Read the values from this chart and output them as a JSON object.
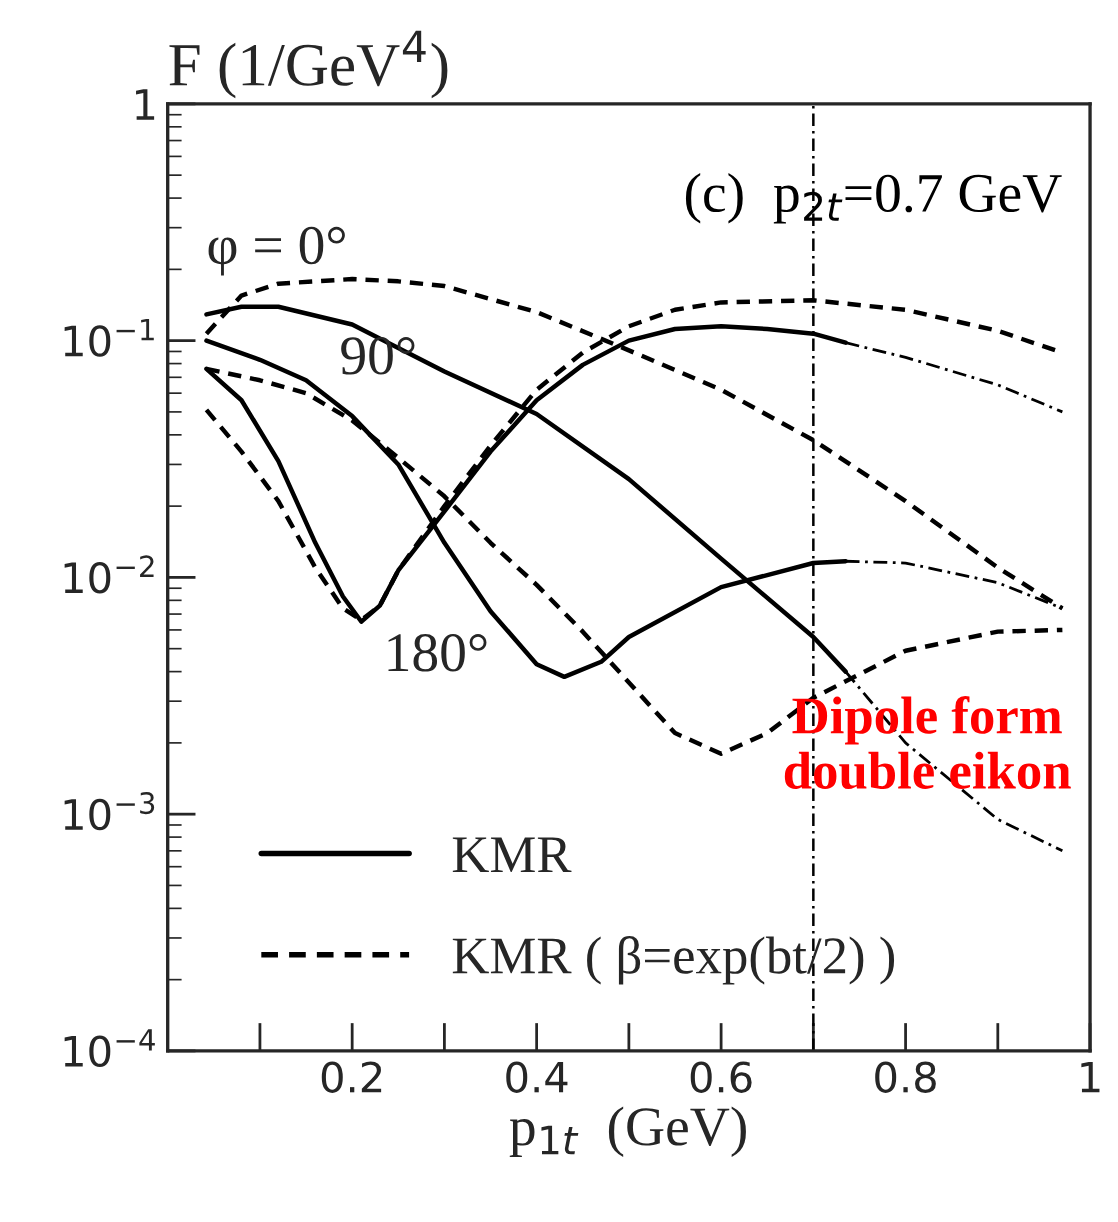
{
  "chart_data": {
    "type": "line",
    "ylabel": "F (1/GeV$^{4}$)",
    "xlabel": "p$_{1t}$  (GeV)",
    "log": "y",
    "xlim": [
      0,
      1.0
    ],
    "ylim": [
      0.0001,
      1
    ],
    "xticks": [
      {
        "value": 0.1,
        "label": null
      },
      {
        "value": 0.2,
        "label": "0.2"
      },
      {
        "value": 0.3,
        "label": null
      },
      {
        "value": 0.4,
        "label": "0.4"
      },
      {
        "value": 0.5,
        "label": null
      },
      {
        "value": 0.6,
        "label": "0.6"
      },
      {
        "value": 0.7,
        "label": null
      },
      {
        "value": 0.8,
        "label": "0.8"
      },
      {
        "value": 0.9,
        "label": null
      },
      {
        "value": 1,
        "label": "1"
      }
    ],
    "yticks": [
      {
        "value": 0.0001,
        "label": "10$^{−4}$"
      },
      {
        "value": 0.001,
        "label": "10$^{−3}$"
      },
      {
        "value": 0.01,
        "label": "10$^{−2}$"
      },
      {
        "value": 0.1,
        "label": "10$^{−1}$"
      },
      {
        "value": 1,
        "label": "1"
      }
    ],
    "grid": false,
    "legend": "bottom left",
    "marker": "none",
    "series": [
      {
        "name": "KMR",
        "color": "#000000",
        "line_style": "solid",
        "x": [
          0.042,
          0.08,
          0.12,
          0.2,
          0.3,
          0.4,
          0.5,
          0.6,
          0.7,
          0.735
        ],
        "values": [
          0.129,
          0.139,
          0.139,
          0.117,
          0.074,
          0.049,
          0.026,
          0.012,
          0.0056,
          0.004
        ]
      },
      {
        "color": "#000000",
        "line_style": "solid",
        "x": [
          0.042,
          0.1,
          0.15,
          0.2,
          0.25,
          0.3,
          0.35,
          0.4,
          0.43,
          0.47,
          0.5,
          0.6,
          0.7,
          0.735
        ],
        "values": [
          0.1,
          0.083,
          0.068,
          0.048,
          0.03,
          0.014,
          0.0072,
          0.0043,
          0.0038,
          0.0044,
          0.0056,
          0.0091,
          0.0115,
          0.0117
        ]
      },
      {
        "color": "#000000",
        "line_style": "solid",
        "x": [
          0.042,
          0.08,
          0.12,
          0.16,
          0.19,
          0.21,
          0.23,
          0.25,
          0.3,
          0.35,
          0.4,
          0.45,
          0.5,
          0.55,
          0.6,
          0.65,
          0.7,
          0.735
        ],
        "values": [
          0.076,
          0.056,
          0.031,
          0.014,
          0.0083,
          0.0065,
          0.0076,
          0.0107,
          0.019,
          0.034,
          0.056,
          0.079,
          0.1,
          0.112,
          0.115,
          0.112,
          0.107,
          0.098
        ]
      },
      {
        "name": "KMR ( β=exp(bt/2) )",
        "color": "#000000",
        "line_style": "dashed",
        "x": [
          0.042,
          0.08,
          0.12,
          0.2,
          0.25,
          0.3,
          0.4,
          0.5,
          0.6,
          0.7,
          0.8,
          0.9,
          0.97
        ],
        "values": [
          0.107,
          0.155,
          0.174,
          0.182,
          0.178,
          0.17,
          0.132,
          0.091,
          0.062,
          0.038,
          0.021,
          0.011,
          0.0074
        ]
      },
      {
        "color": "#000000",
        "line_style": "dashed",
        "x": [
          0.042,
          0.1,
          0.15,
          0.2,
          0.25,
          0.3,
          0.35,
          0.4,
          0.45,
          0.5,
          0.55,
          0.6,
          0.65,
          0.7,
          0.8,
          0.9,
          0.97
        ],
        "values": [
          0.076,
          0.068,
          0.06,
          0.046,
          0.032,
          0.022,
          0.014,
          0.0093,
          0.0059,
          0.0036,
          0.0022,
          0.0018,
          0.0022,
          0.0031,
          0.0049,
          0.0059,
          0.006
        ]
      },
      {
        "color": "#000000",
        "line_style": "dashed",
        "x": [
          0.042,
          0.08,
          0.12,
          0.16,
          0.19,
          0.21,
          0.23,
          0.25,
          0.3,
          0.35,
          0.4,
          0.45,
          0.5,
          0.55,
          0.6,
          0.7,
          0.8,
          0.9,
          0.97
        ],
        "values": [
          0.051,
          0.034,
          0.021,
          0.011,
          0.0074,
          0.0066,
          0.0076,
          0.0107,
          0.02,
          0.036,
          0.062,
          0.089,
          0.115,
          0.135,
          0.145,
          0.148,
          0.135,
          0.11,
          0.089
        ]
      },
      {
        "color": "#000000",
        "line_style": "dotted",
        "x": [
          0.735,
          0.8,
          0.9,
          0.97
        ],
        "values": [
          0.004,
          0.002,
          0.00095,
          0.0007
        ]
      },
      {
        "color": "#000000",
        "line_style": "dotted",
        "x": [
          0.735,
          0.8,
          0.9,
          0.97
        ],
        "values": [
          0.0117,
          0.0115,
          0.0095,
          0.0074
        ]
      },
      {
        "color": "#000000",
        "line_style": "dotted",
        "x": [
          0.735,
          0.8,
          0.9,
          0.97
        ],
        "values": [
          0.098,
          0.085,
          0.065,
          0.05
        ]
      }
    ],
    "ref_lines": [
      {
        "axis": "x",
        "value": 0.7,
        "label": null,
        "color": "#000000",
        "line_style": "dotted"
      }
    ],
    "annotations": [
      {
        "text": "(c)  p$_{2t}$=0.7 GeV"
      },
      {
        "text": "φ = 0°",
        "x": 0.042,
        "y": 0.129
      },
      {
        "text": "90°",
        "x": 0.15,
        "y": 0.068
      },
      {
        "text": "180°",
        "x": 0.21,
        "y": 0.0065
      },
      {
        "text": "Dipole form\ndouble eikon"
      }
    ]
  }
}
